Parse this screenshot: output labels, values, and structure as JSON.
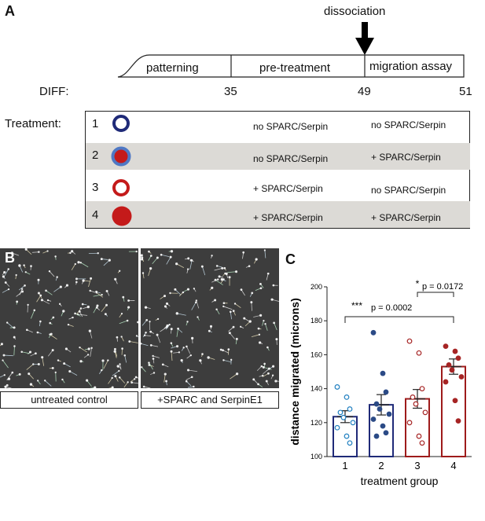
{
  "panel_a": {
    "label": "A",
    "arrow_label": "dissociation",
    "phases": [
      "patterning",
      "pre-treatment",
      "migration assay"
    ],
    "diff_label": "DIFF:",
    "diff_ticks": [
      "35",
      "49",
      "51"
    ],
    "treatment_label": "Treatment:",
    "rows": [
      {
        "num": "1",
        "symbol": "open-navy-circle",
        "pre": "no SPARC/Serpin",
        "mig": "no SPARC/Serpin",
        "shaded": false
      },
      {
        "num": "2",
        "symbol": "blue-ring-red-fill-circle",
        "pre": "no SPARC/Serpin",
        "mig": "+ SPARC/Serpin",
        "shaded": true
      },
      {
        "num": "3",
        "symbol": "open-red-circle",
        "pre": "+ SPARC/Serpin",
        "mig": "no SPARC/Serpin",
        "shaded": false
      },
      {
        "num": "4",
        "symbol": "filled-red-circle",
        "pre": "+ SPARC/Serpin",
        "mig": "+ SPARC/Serpin",
        "shaded": true
      }
    ],
    "colors": {
      "navy": "#1f2a78",
      "blue": "#4f78c4",
      "red": "#c41a1a",
      "shade": "#dcdad6"
    }
  },
  "panel_b": {
    "label": "B",
    "captions": [
      "untreated control",
      "+SPARC and SerpinE1"
    ]
  },
  "panel_c": {
    "label": "C",
    "sig": [
      {
        "stars": "***",
        "text": "p = 0.0002"
      },
      {
        "stars": "*",
        "text": "p = 0.0172"
      }
    ]
  },
  "chart_data": {
    "type": "bar",
    "title": "",
    "xlabel": "treatment group",
    "ylabel": "distance migrated (microns)",
    "categories": [
      "1",
      "2",
      "3",
      "4"
    ],
    "values": [
      123.5,
      130.5,
      134,
      153
    ],
    "errors": [
      3.5,
      6,
      5.5,
      4.5
    ],
    "ylim": [
      100,
      200
    ],
    "yticks": [
      100,
      120,
      140,
      160,
      180,
      200
    ],
    "grid": false,
    "bar_edge_colors": [
      "#1f2a78",
      "#1f2a78",
      "#9e1b1b",
      "#9e1b1b"
    ],
    "points": [
      {
        "group": "1",
        "marker": "open",
        "color": "#1f7fc0",
        "values": [
          141,
          135,
          128,
          126,
          123,
          120,
          117,
          112,
          108
        ]
      },
      {
        "group": "2",
        "marker": "filled",
        "color": "#2b4a86",
        "values": [
          173,
          149,
          138,
          131,
          128,
          125,
          122,
          118,
          114,
          112
        ]
      },
      {
        "group": "3",
        "marker": "open",
        "color": "#a62424",
        "values": [
          168,
          161,
          140,
          135,
          131,
          126,
          120,
          112,
          108
        ]
      },
      {
        "group": "4",
        "marker": "filled",
        "color": "#a62424",
        "values": [
          165,
          162,
          158,
          154,
          151,
          147,
          144,
          133,
          121
        ]
      }
    ],
    "comparisons": [
      {
        "from": "1",
        "to": "4",
        "p": "p = 0.0002",
        "stars": "***"
      },
      {
        "from": "3",
        "to": "4",
        "p": "p = 0.0172",
        "stars": "*"
      }
    ]
  }
}
